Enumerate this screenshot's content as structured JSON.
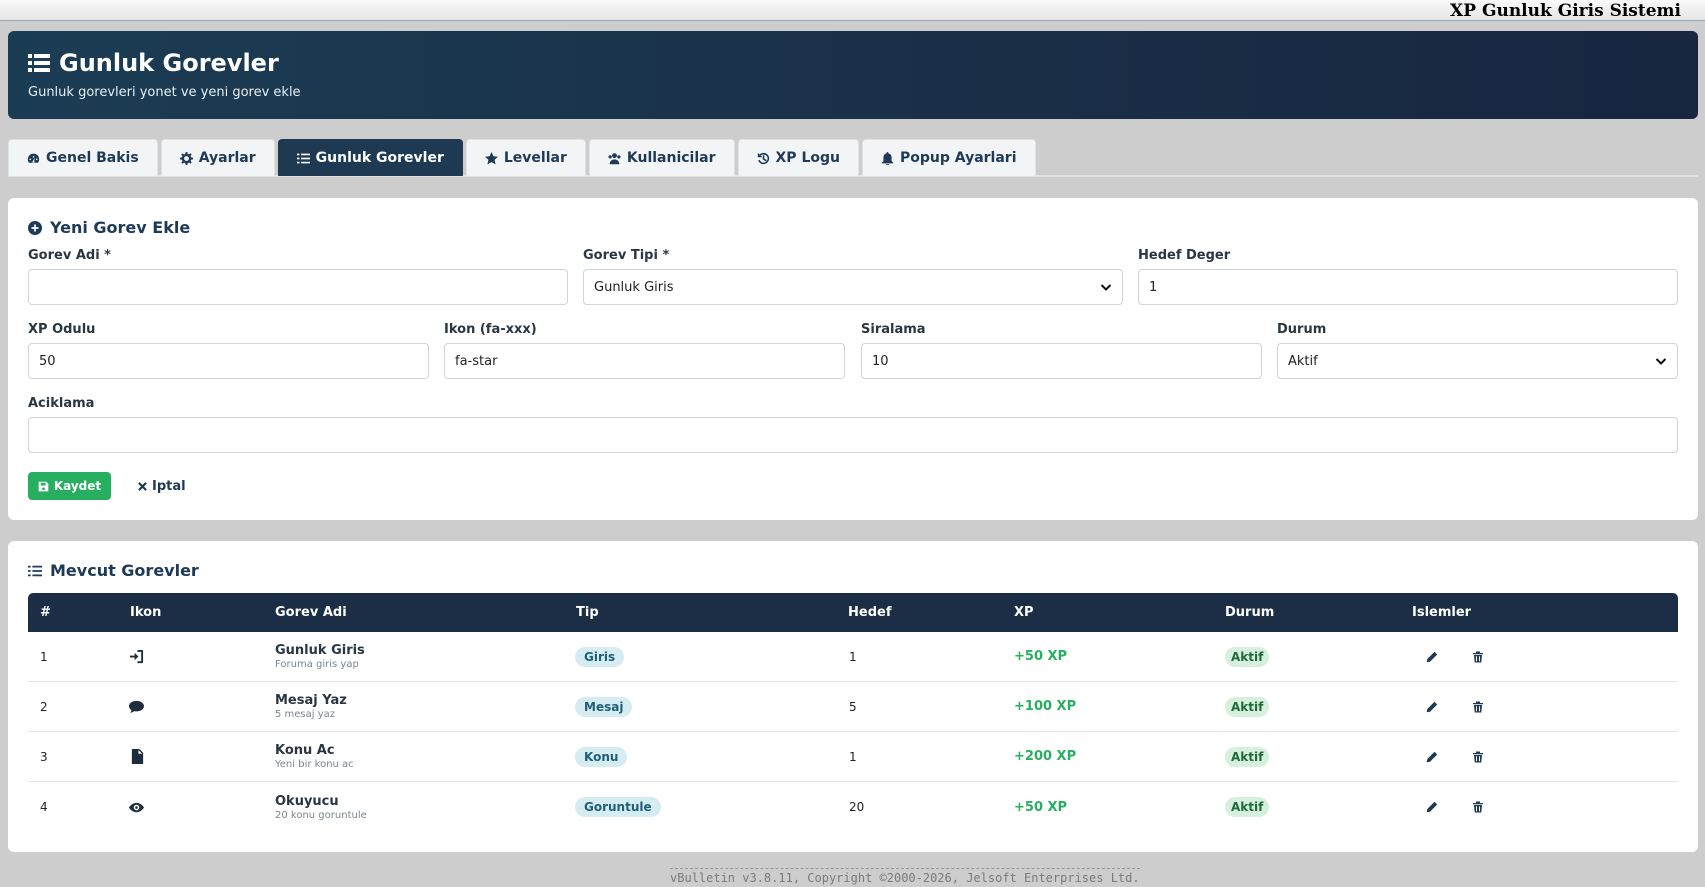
{
  "topbar": {
    "title": "XP Gunluk Giris Sistemi"
  },
  "header": {
    "title": "Gunluk Gorevler",
    "subtitle": "Gunluk gorevleri yonet ve yeni gorev ekle"
  },
  "tabs": [
    {
      "label": "Genel Bakis",
      "icon": "dashboard-icon",
      "active": false
    },
    {
      "label": "Ayarlar",
      "icon": "gear-icon",
      "active": false
    },
    {
      "label": "Gunluk Gorevler",
      "icon": "list-icon",
      "active": true
    },
    {
      "label": "Levellar",
      "icon": "star-icon",
      "active": false
    },
    {
      "label": "Kullanicilar",
      "icon": "users-icon",
      "active": false
    },
    {
      "label": "XP Logu",
      "icon": "history-icon",
      "active": false
    },
    {
      "label": "Popup Ayarlari",
      "icon": "bell-icon",
      "active": false
    }
  ],
  "form": {
    "title": "Yeni Gorev Ekle",
    "name_label": "Gorev Adi *",
    "name_value": "",
    "type_label": "Gorev Tipi *",
    "type_value": "Gunluk Giris",
    "target_label": "Hedef Deger",
    "target_value": "1",
    "xp_label": "XP Odulu",
    "xp_value": "50",
    "icon_label": "Ikon (fa-xxx)",
    "icon_value": "fa-star",
    "order_label": "Siralama",
    "order_value": "10",
    "status_label": "Durum",
    "status_value": "Aktif",
    "desc_label": "Aciklama",
    "desc_value": "",
    "save_label": "Kaydet",
    "cancel_label": "Iptal"
  },
  "list": {
    "title": "Mevcut Gorevler",
    "columns": [
      "#",
      "Ikon",
      "Gorev Adi",
      "Tip",
      "Hedef",
      "XP",
      "Durum",
      "Islemler"
    ],
    "rows": [
      {
        "num": "1",
        "icon": "sign-in-icon",
        "name": "Gunluk Giris",
        "desc": "Foruma giris yap",
        "type": "Giris",
        "target": "1",
        "xp": "+50 XP",
        "status": "Aktif"
      },
      {
        "num": "2",
        "icon": "comment-icon",
        "name": "Mesaj Yaz",
        "desc": "5 mesaj yaz",
        "type": "Mesaj",
        "target": "5",
        "xp": "+100 XP",
        "status": "Aktif"
      },
      {
        "num": "3",
        "icon": "file-icon",
        "name": "Konu Ac",
        "desc": "Yeni bir konu ac",
        "type": "Konu",
        "target": "1",
        "xp": "+200 XP",
        "status": "Aktif"
      },
      {
        "num": "4",
        "icon": "eye-icon",
        "name": "Okuyucu",
        "desc": "20 konu goruntule",
        "type": "Goruntule",
        "target": "20",
        "xp": "+50 XP",
        "status": "Aktif"
      }
    ]
  },
  "footer": {
    "text": "vBulletin v3.8.11, Copyright ©2000-2026, Jelsoft Enterprises Ltd."
  }
}
